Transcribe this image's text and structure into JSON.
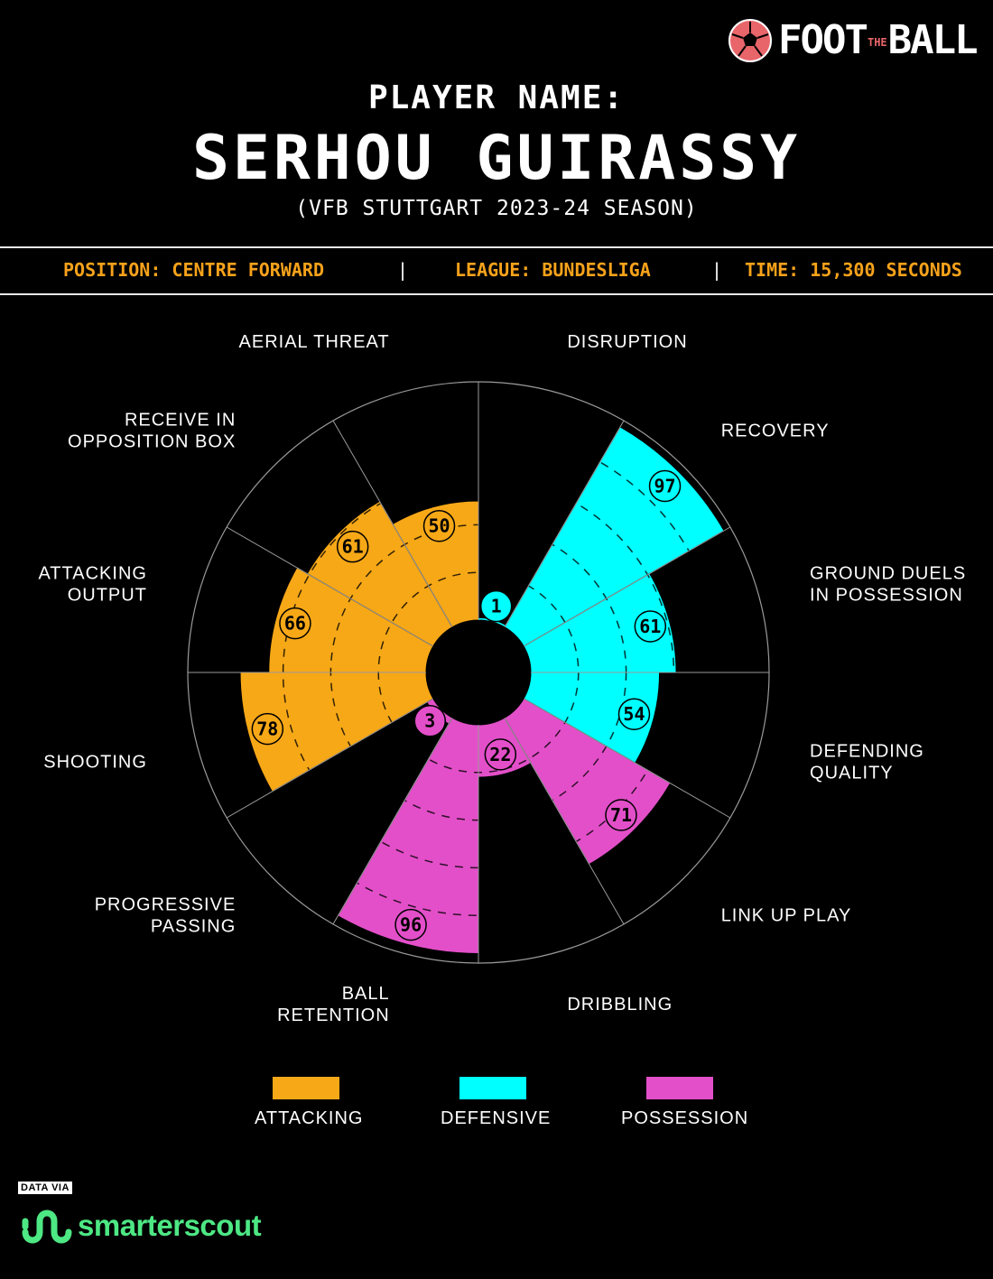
{
  "brand": {
    "logo_text_left": "FOOT",
    "logo_text_mid": "THE",
    "logo_text_right": "BALL"
  },
  "header": {
    "label": "PLAYER NAME:",
    "player": "SERHOU GUIRASSY",
    "season": "(VFB STUTTGART 2023-24 SEASON)"
  },
  "info": {
    "position": "POSITION: CENTRE FORWARD",
    "league": "LEAGUE: BUNDESLIGA",
    "time": "TIME: 15,300 SECONDS",
    "separator": "|"
  },
  "colors": {
    "attacking": "#f7a817",
    "defensive": "#00ffff",
    "possession": "#e34fc9",
    "accent": "#f7a21b"
  },
  "chart_data": {
    "type": "polar-bar",
    "range": [
      0,
      100
    ],
    "categories": [
      {
        "label": [
          "DISRUPTION"
        ],
        "value": 1,
        "group": "defensive"
      },
      {
        "label": [
          "RECOVERY"
        ],
        "value": 97,
        "group": "defensive"
      },
      {
        "label": [
          "GROUND DUELS",
          "IN POSSESSION"
        ],
        "value": 61,
        "group": "defensive"
      },
      {
        "label": [
          "DEFENDING",
          "QUALITY"
        ],
        "value": 54,
        "group": "defensive"
      },
      {
        "label": [
          "LINK UP PLAY"
        ],
        "value": 71,
        "group": "possession"
      },
      {
        "label": [
          "DRIBBLING"
        ],
        "value": 22,
        "group": "possession"
      },
      {
        "label": [
          "BALL",
          "RETENTION"
        ],
        "value": 96,
        "group": "possession"
      },
      {
        "label": [
          "PROGRESSIVE",
          "PASSING"
        ],
        "value": 3,
        "group": "possession"
      },
      {
        "label": [
          "SHOOTING"
        ],
        "value": 78,
        "group": "attacking"
      },
      {
        "label": [
          "ATTACKING",
          "OUTPUT"
        ],
        "value": 66,
        "group": "attacking"
      },
      {
        "label": [
          "RECEIVE IN",
          "OPPOSITION BOX"
        ],
        "value": 61,
        "group": "attacking"
      },
      {
        "label": [
          "AERIAL THREAT"
        ],
        "value": 50,
        "group": "attacking"
      }
    ]
  },
  "legend": [
    {
      "group": "attacking",
      "label": "ATTACKING"
    },
    {
      "group": "defensive",
      "label": "DEFENSIVE"
    },
    {
      "group": "possession",
      "label": "POSSESSION"
    }
  ],
  "footer": {
    "data_via": "DATA VIA",
    "source": "smarterscout"
  }
}
